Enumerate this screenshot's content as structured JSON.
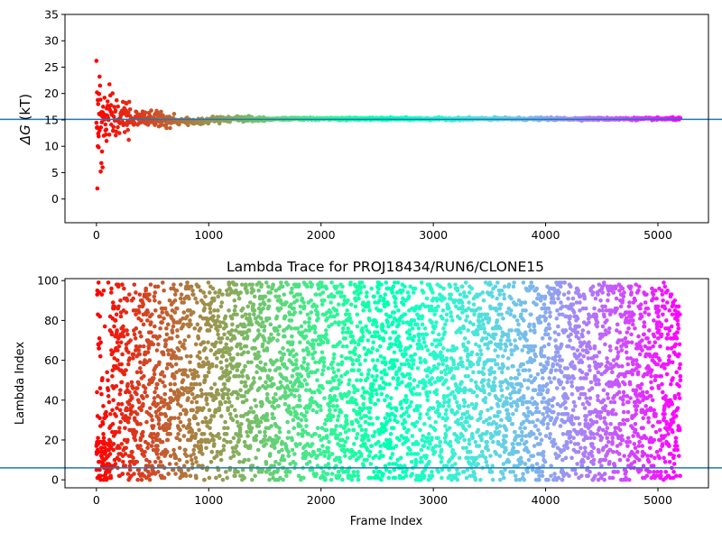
{
  "chart_data": [
    {
      "type": "scatter",
      "title": "",
      "xlabel": "",
      "ylabel": "ΔG (kT)",
      "ylabel_symbol": "ΔG",
      "ylabel_unit": "(kT)",
      "xlim": [
        -280,
        5450
      ],
      "ylim": [
        -4.5,
        35
      ],
      "xticks": [
        0,
        1000,
        2000,
        3000,
        4000,
        5000
      ],
      "yticks": [
        0,
        5,
        10,
        15,
        20,
        25,
        30,
        35
      ],
      "xtick_labels": [
        "0",
        "1000",
        "2000",
        "3000",
        "4000",
        "5000"
      ],
      "ytick_labels": [
        "0",
        "5",
        "10",
        "15",
        "20",
        "25",
        "30",
        "35"
      ],
      "hline": 15.1,
      "hline_color": "#1f77b4",
      "colormap": "rainbow",
      "frame_count": 5200,
      "converged_value": 15.2,
      "early_points": [
        {
          "x": 0,
          "y": 26.2
        },
        {
          "x": 5,
          "y": 20.2
        },
        {
          "x": 8,
          "y": 2.0
        },
        {
          "x": 12,
          "y": 10.0
        },
        {
          "x": 15,
          "y": 18.0
        },
        {
          "x": 20,
          "y": 9.8
        },
        {
          "x": 24,
          "y": 19.9
        },
        {
          "x": 28,
          "y": 23.2
        },
        {
          "x": 32,
          "y": 21.5
        },
        {
          "x": 38,
          "y": 5.2
        },
        {
          "x": 44,
          "y": 6.8
        },
        {
          "x": 50,
          "y": 9.0
        },
        {
          "x": 55,
          "y": 6.0
        },
        {
          "x": 60,
          "y": 17.5
        },
        {
          "x": 66,
          "y": 12.0
        },
        {
          "x": 72,
          "y": 19.2
        },
        {
          "x": 80,
          "y": 13.0
        },
        {
          "x": 90,
          "y": 11.0
        },
        {
          "x": 100,
          "y": 18.5
        },
        {
          "x": 115,
          "y": 12.2
        },
        {
          "x": 130,
          "y": 17.8
        },
        {
          "x": 150,
          "y": 13.0
        },
        {
          "x": 170,
          "y": 16.8
        },
        {
          "x": 190,
          "y": 13.6
        },
        {
          "x": 215,
          "y": 16.2
        },
        {
          "x": 240,
          "y": 14.0
        },
        {
          "x": 270,
          "y": 15.8
        },
        {
          "x": 300,
          "y": 17.0
        },
        {
          "x": 340,
          "y": 14.2
        },
        {
          "x": 380,
          "y": 15.9
        },
        {
          "x": 420,
          "y": 14.6
        },
        {
          "x": 470,
          "y": 15.7
        },
        {
          "x": 520,
          "y": 16.0
        },
        {
          "x": 580,
          "y": 14.7
        },
        {
          "x": 650,
          "y": 15.6
        },
        {
          "x": 720,
          "y": 14.8
        },
        {
          "x": 800,
          "y": 15.3
        },
        {
          "x": 880,
          "y": 14.4
        }
      ]
    },
    {
      "type": "scatter",
      "title": "Lambda Trace for PROJ18434/RUN6/CLONE15",
      "xlabel": "Frame Index",
      "ylabel": "Lambda Index",
      "xlim": [
        -280,
        5450
      ],
      "ylim": [
        -4,
        101
      ],
      "xticks": [
        0,
        1000,
        2000,
        3000,
        4000,
        5000
      ],
      "yticks": [
        0,
        20,
        40,
        60,
        80,
        100
      ],
      "xtick_labels": [
        "0",
        "1000",
        "2000",
        "3000",
        "4000",
        "5000"
      ],
      "ytick_labels": [
        "0",
        "20",
        "40",
        "60",
        "80",
        "100"
      ],
      "hline": 6,
      "hline_color": "#1f77b4",
      "colormap": "rainbow",
      "frame_count": 5200,
      "lambda_min": 0,
      "lambda_max": 99
    }
  ]
}
